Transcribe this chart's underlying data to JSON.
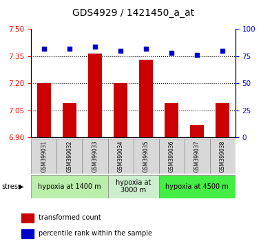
{
  "title": "GDS4929 / 1421450_a_at",
  "samples": [
    "GSM399031",
    "GSM399032",
    "GSM399033",
    "GSM399034",
    "GSM399035",
    "GSM399036",
    "GSM399037",
    "GSM399038"
  ],
  "bar_values": [
    7.2,
    7.09,
    7.365,
    7.2,
    7.33,
    7.09,
    6.97,
    7.09
  ],
  "dot_values": [
    82,
    82,
    84,
    80,
    82,
    78,
    76,
    80
  ],
  "ylim_left": [
    6.9,
    7.5
  ],
  "ylim_right": [
    0,
    100
  ],
  "yticks_left": [
    6.9,
    7.05,
    7.2,
    7.35,
    7.5
  ],
  "yticks_right": [
    0,
    25,
    50,
    75,
    100
  ],
  "bar_color": "#cc0000",
  "dot_color": "#0000cc",
  "bar_bottom": 6.9,
  "groups": [
    {
      "label": "hypoxia at 1400 m",
      "start": 0,
      "end": 3,
      "color": "#bbeeaa"
    },
    {
      "label": "hypoxia at\n3000 m",
      "start": 3,
      "end": 5,
      "color": "#cceecc"
    },
    {
      "label": "hypoxia at 4500 m",
      "start": 5,
      "end": 8,
      "color": "#44ee44"
    }
  ],
  "title_fontsize": 10,
  "tick_fontsize": 7.5,
  "group_label_fontsize": 7,
  "sample_fontsize": 5.5,
  "legend_fontsize": 7,
  "background_color": "#ffffff",
  "plot_bg_color": "#ffffff",
  "grid_lines": [
    7.05,
    7.2,
    7.35
  ]
}
